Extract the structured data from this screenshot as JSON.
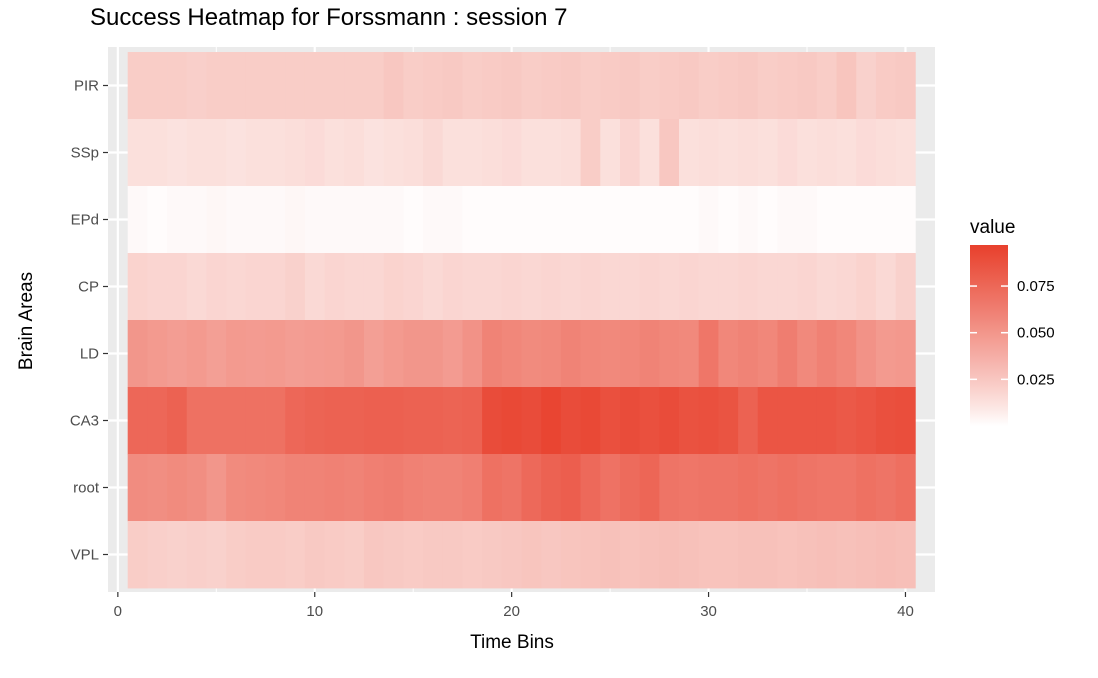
{
  "chart_data": {
    "type": "heatmap",
    "title": "Success Heatmap for Forssmann : session 7",
    "xlabel": "Time Bins",
    "ylabel": "Brain Areas",
    "x": [
      1,
      2,
      3,
      4,
      5,
      6,
      7,
      8,
      9,
      10,
      11,
      12,
      13,
      14,
      15,
      16,
      17,
      18,
      19,
      20,
      21,
      22,
      23,
      24,
      25,
      26,
      27,
      28,
      29,
      30,
      31,
      32,
      33,
      34,
      35,
      36,
      37,
      38,
      39,
      40
    ],
    "xlim": [
      0.5,
      40.5
    ],
    "x_ticks": [
      0,
      10,
      20,
      30,
      40
    ],
    "y_categories": [
      "PIR",
      "SSp",
      "EPd",
      "CP",
      "LD",
      "CA3",
      "root",
      "VPL"
    ],
    "series": [
      {
        "name": "PIR",
        "values": [
          0.022,
          0.022,
          0.022,
          0.021,
          0.022,
          0.022,
          0.022,
          0.022,
          0.022,
          0.022,
          0.022,
          0.022,
          0.022,
          0.025,
          0.022,
          0.023,
          0.024,
          0.022,
          0.023,
          0.024,
          0.022,
          0.023,
          0.024,
          0.022,
          0.023,
          0.024,
          0.022,
          0.023,
          0.024,
          0.022,
          0.023,
          0.024,
          0.022,
          0.023,
          0.024,
          0.022,
          0.026,
          0.02,
          0.023,
          0.024
        ]
      },
      {
        "name": "SSp",
        "values": [
          0.013,
          0.013,
          0.012,
          0.013,
          0.013,
          0.012,
          0.013,
          0.013,
          0.014,
          0.015,
          0.013,
          0.014,
          0.012,
          0.013,
          0.014,
          0.016,
          0.013,
          0.013,
          0.014,
          0.015,
          0.013,
          0.013,
          0.014,
          0.022,
          0.013,
          0.018,
          0.013,
          0.025,
          0.013,
          0.014,
          0.013,
          0.014,
          0.013,
          0.015,
          0.013,
          0.014,
          0.013,
          0.015,
          0.014,
          0.013
        ]
      },
      {
        "name": "EPd",
        "values": [
          0.002,
          0.001,
          0.002,
          0.002,
          0.003,
          0.002,
          0.002,
          0.002,
          0.003,
          0.002,
          0.002,
          0.002,
          0.002,
          0.002,
          0.001,
          0.002,
          0.002,
          0.001,
          0.001,
          0.001,
          0.001,
          0.001,
          0.001,
          0.001,
          0.001,
          0.001,
          0.001,
          0.001,
          0.001,
          0.002,
          0.001,
          0.002,
          0.001,
          0.002,
          0.002,
          0.001,
          0.001,
          0.001,
          0.001,
          0.001
        ]
      },
      {
        "name": "CP",
        "values": [
          0.019,
          0.018,
          0.018,
          0.016,
          0.018,
          0.017,
          0.018,
          0.018,
          0.02,
          0.016,
          0.018,
          0.017,
          0.017,
          0.019,
          0.018,
          0.016,
          0.018,
          0.017,
          0.017,
          0.018,
          0.017,
          0.018,
          0.017,
          0.018,
          0.017,
          0.017,
          0.018,
          0.017,
          0.018,
          0.017,
          0.017,
          0.018,
          0.017,
          0.017,
          0.018,
          0.016,
          0.017,
          0.019,
          0.016,
          0.02
        ]
      },
      {
        "name": "LD",
        "values": [
          0.05,
          0.048,
          0.046,
          0.048,
          0.045,
          0.048,
          0.047,
          0.048,
          0.046,
          0.047,
          0.048,
          0.05,
          0.045,
          0.048,
          0.05,
          0.05,
          0.047,
          0.052,
          0.06,
          0.058,
          0.056,
          0.057,
          0.06,
          0.058,
          0.057,
          0.058,
          0.06,
          0.058,
          0.057,
          0.067,
          0.058,
          0.06,
          0.058,
          0.063,
          0.057,
          0.061,
          0.058,
          0.052,
          0.048,
          0.049
        ]
      },
      {
        "name": "CA3",
        "values": [
          0.075,
          0.075,
          0.078,
          0.07,
          0.07,
          0.07,
          0.07,
          0.07,
          0.075,
          0.077,
          0.078,
          0.078,
          0.079,
          0.079,
          0.078,
          0.078,
          0.077,
          0.078,
          0.09,
          0.092,
          0.09,
          0.094,
          0.09,
          0.092,
          0.088,
          0.09,
          0.088,
          0.09,
          0.087,
          0.088,
          0.086,
          0.078,
          0.085,
          0.085,
          0.085,
          0.085,
          0.083,
          0.085,
          0.088,
          0.089
        ]
      },
      {
        "name": "root",
        "values": [
          0.055,
          0.054,
          0.056,
          0.054,
          0.05,
          0.056,
          0.057,
          0.058,
          0.06,
          0.06,
          0.061,
          0.06,
          0.062,
          0.063,
          0.061,
          0.06,
          0.06,
          0.062,
          0.07,
          0.068,
          0.074,
          0.078,
          0.08,
          0.074,
          0.069,
          0.073,
          0.076,
          0.068,
          0.067,
          0.068,
          0.068,
          0.07,
          0.068,
          0.07,
          0.068,
          0.067,
          0.067,
          0.07,
          0.068,
          0.071
        ]
      },
      {
        "name": "VPL",
        "values": [
          0.022,
          0.021,
          0.02,
          0.021,
          0.02,
          0.022,
          0.023,
          0.023,
          0.022,
          0.024,
          0.023,
          0.022,
          0.025,
          0.024,
          0.023,
          0.024,
          0.024,
          0.023,
          0.024,
          0.025,
          0.026,
          0.025,
          0.026,
          0.027,
          0.028,
          0.027,
          0.028,
          0.029,
          0.028,
          0.027,
          0.027,
          0.028,
          0.028,
          0.027,
          0.028,
          0.029,
          0.028,
          0.029,
          0.03,
          0.029
        ]
      }
    ],
    "legend": {
      "title": "value",
      "position": "right",
      "ticks": [
        0.025,
        0.05,
        0.075
      ],
      "tick_labels": [
        "0.025",
        "0.050",
        "0.075"
      ],
      "range": [
        0.0,
        0.097
      ]
    },
    "colors": {
      "low": "#ffffff",
      "high": "#e8402c",
      "panel_background": "#ebebeb",
      "grid": "#ffffff"
    },
    "grid": true
  }
}
